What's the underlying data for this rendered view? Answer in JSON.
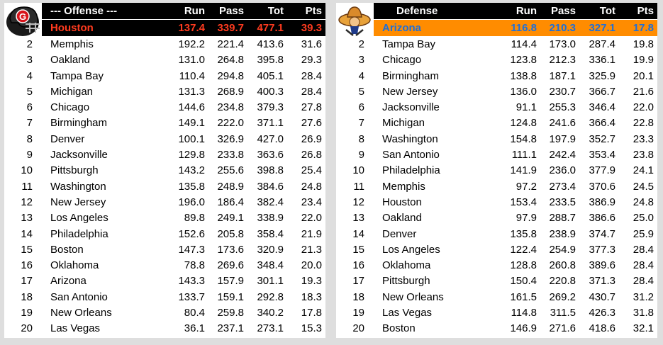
{
  "offense": {
    "header": {
      "title": "--- Offense ---",
      "run": "Run",
      "pass": "Pass",
      "tot": "Tot",
      "pts": "Pts"
    },
    "logo_icon": "football-helmet-red-g",
    "top": {
      "team": "Houston",
      "run": "137.4",
      "pass": "339.7",
      "tot": "477.1",
      "pts": "39.3"
    },
    "rows": [
      {
        "rank": "2",
        "team": "Memphis",
        "run": "192.2",
        "pass": "221.4",
        "tot": "413.6",
        "pts": "31.6"
      },
      {
        "rank": "3",
        "team": "Oakland",
        "run": "131.0",
        "pass": "264.8",
        "tot": "395.8",
        "pts": "29.3"
      },
      {
        "rank": "4",
        "team": "Tampa Bay",
        "run": "110.4",
        "pass": "294.8",
        "tot": "405.1",
        "pts": "28.4"
      },
      {
        "rank": "5",
        "team": "Michigan",
        "run": "131.3",
        "pass": "268.9",
        "tot": "400.3",
        "pts": "28.4"
      },
      {
        "rank": "6",
        "team": "Chicago",
        "run": "144.6",
        "pass": "234.8",
        "tot": "379.3",
        "pts": "27.8"
      },
      {
        "rank": "7",
        "team": "Birmingham",
        "run": "149.1",
        "pass": "222.0",
        "tot": "371.1",
        "pts": "27.6"
      },
      {
        "rank": "8",
        "team": "Denver",
        "run": "100.1",
        "pass": "326.9",
        "tot": "427.0",
        "pts": "26.9"
      },
      {
        "rank": "9",
        "team": "Jacksonville",
        "run": "129.8",
        "pass": "233.8",
        "tot": "363.6",
        "pts": "26.8"
      },
      {
        "rank": "10",
        "team": "Pittsburgh",
        "run": "143.2",
        "pass": "255.6",
        "tot": "398.8",
        "pts": "25.4"
      },
      {
        "rank": "11",
        "team": "Washington",
        "run": "135.8",
        "pass": "248.9",
        "tot": "384.6",
        "pts": "24.8"
      },
      {
        "rank": "12",
        "team": "New Jersey",
        "run": "196.0",
        "pass": "186.4",
        "tot": "382.4",
        "pts": "23.4"
      },
      {
        "rank": "13",
        "team": "Los Angeles",
        "run": "89.8",
        "pass": "249.1",
        "tot": "338.9",
        "pts": "22.0"
      },
      {
        "rank": "14",
        "team": "Philadelphia",
        "run": "152.6",
        "pass": "205.8",
        "tot": "358.4",
        "pts": "21.9"
      },
      {
        "rank": "15",
        "team": "Boston",
        "run": "147.3",
        "pass": "173.6",
        "tot": "320.9",
        "pts": "21.3"
      },
      {
        "rank": "16",
        "team": "Oklahoma",
        "run": "78.8",
        "pass": "269.6",
        "tot": "348.4",
        "pts": "20.0"
      },
      {
        "rank": "17",
        "team": "Arizona",
        "run": "143.3",
        "pass": "157.9",
        "tot": "301.1",
        "pts": "19.3"
      },
      {
        "rank": "18",
        "team": "San Antonio",
        "run": "133.7",
        "pass": "159.1",
        "tot": "292.8",
        "pts": "18.3"
      },
      {
        "rank": "19",
        "team": "New Orleans",
        "run": "80.4",
        "pass": "259.8",
        "tot": "340.2",
        "pts": "17.8"
      },
      {
        "rank": "20",
        "team": "Las Vegas",
        "run": "36.1",
        "pass": "237.1",
        "tot": "273.1",
        "pts": "15.3"
      }
    ]
  },
  "defense": {
    "header": {
      "title": "Defense",
      "run": "Run",
      "pass": "Pass",
      "tot": "Tot",
      "pts": "Pts"
    },
    "logo_icon": "cartoon-gunslinger-mascot",
    "top": {
      "team": "Arizona",
      "run": "116.8",
      "pass": "210.3",
      "tot": "327.1",
      "pts": "17.8"
    },
    "rows": [
      {
        "rank": "2",
        "team": "Tampa Bay",
        "run": "114.4",
        "pass": "173.0",
        "tot": "287.4",
        "pts": "19.8"
      },
      {
        "rank": "3",
        "team": "Chicago",
        "run": "123.8",
        "pass": "212.3",
        "tot": "336.1",
        "pts": "19.9"
      },
      {
        "rank": "4",
        "team": "Birmingham",
        "run": "138.8",
        "pass": "187.1",
        "tot": "325.9",
        "pts": "20.1"
      },
      {
        "rank": "5",
        "team": "New Jersey",
        "run": "136.0",
        "pass": "230.7",
        "tot": "366.7",
        "pts": "21.6"
      },
      {
        "rank": "6",
        "team": "Jacksonville",
        "run": "91.1",
        "pass": "255.3",
        "tot": "346.4",
        "pts": "22.0"
      },
      {
        "rank": "7",
        "team": "Michigan",
        "run": "124.8",
        "pass": "241.6",
        "tot": "366.4",
        "pts": "22.8"
      },
      {
        "rank": "8",
        "team": "Washington",
        "run": "154.8",
        "pass": "197.9",
        "tot": "352.7",
        "pts": "23.3"
      },
      {
        "rank": "9",
        "team": "San Antonio",
        "run": "111.1",
        "pass": "242.4",
        "tot": "353.4",
        "pts": "23.8"
      },
      {
        "rank": "10",
        "team": "Philadelphia",
        "run": "141.9",
        "pass": "236.0",
        "tot": "377.9",
        "pts": "24.1"
      },
      {
        "rank": "11",
        "team": "Memphis",
        "run": "97.2",
        "pass": "273.4",
        "tot": "370.6",
        "pts": "24.5"
      },
      {
        "rank": "12",
        "team": "Houston",
        "run": "153.4",
        "pass": "233.5",
        "tot": "386.9",
        "pts": "24.8"
      },
      {
        "rank": "13",
        "team": "Oakland",
        "run": "97.9",
        "pass": "288.7",
        "tot": "386.6",
        "pts": "25.0"
      },
      {
        "rank": "14",
        "team": "Denver",
        "run": "135.8",
        "pass": "238.9",
        "tot": "374.7",
        "pts": "25.9"
      },
      {
        "rank": "15",
        "team": "Los Angeles",
        "run": "122.4",
        "pass": "254.9",
        "tot": "377.3",
        "pts": "28.4"
      },
      {
        "rank": "16",
        "team": "Oklahoma",
        "run": "128.8",
        "pass": "260.8",
        "tot": "389.6",
        "pts": "28.4"
      },
      {
        "rank": "17",
        "team": "Pittsburgh",
        "run": "150.4",
        "pass": "220.8",
        "tot": "371.3",
        "pts": "28.4"
      },
      {
        "rank": "18",
        "team": "New Orleans",
        "run": "161.5",
        "pass": "269.2",
        "tot": "430.7",
        "pts": "31.2"
      },
      {
        "rank": "19",
        "team": "Las Vegas",
        "run": "114.8",
        "pass": "311.5",
        "tot": "426.3",
        "pts": "31.8"
      },
      {
        "rank": "20",
        "team": "Boston",
        "run": "146.9",
        "pass": "271.6",
        "tot": "418.6",
        "pts": "32.1"
      }
    ]
  }
}
